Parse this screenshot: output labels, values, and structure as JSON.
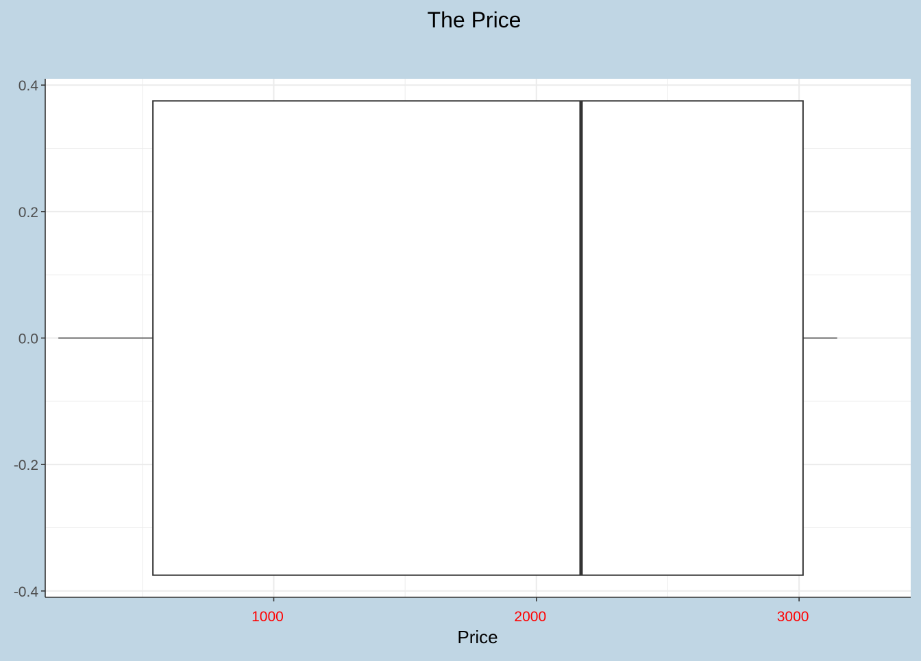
{
  "chart_data": {
    "type": "boxplot",
    "title": "The Price",
    "xlabel": "Price",
    "ylabel": "",
    "xlim": [
      130,
      3425
    ],
    "ylim": [
      -0.41,
      0.41
    ],
    "x_ticks": [
      1000,
      2000,
      3000
    ],
    "x_tick_labels": [
      "1000",
      "2000",
      "3000"
    ],
    "y_ticks": [
      0.4,
      0.2,
      0.0,
      -0.2,
      -0.4
    ],
    "y_tick_labels": [
      "0.4",
      "0.2",
      "0.0",
      "-0.2",
      "-0.4"
    ],
    "box": {
      "min": 180,
      "q1": 540,
      "median": 2170,
      "q3": 3015,
      "max": 3145,
      "y_center": 0.0,
      "half_height": 0.375
    },
    "grid": true,
    "colors": {
      "background": "#c0d6e4",
      "panel": "#ffffff",
      "grid": "#ebebeb",
      "box_stroke": "#333333",
      "x_tick_label": "#ff0000",
      "y_tick_label": "#4d4d4d",
      "title": "#000000"
    }
  }
}
